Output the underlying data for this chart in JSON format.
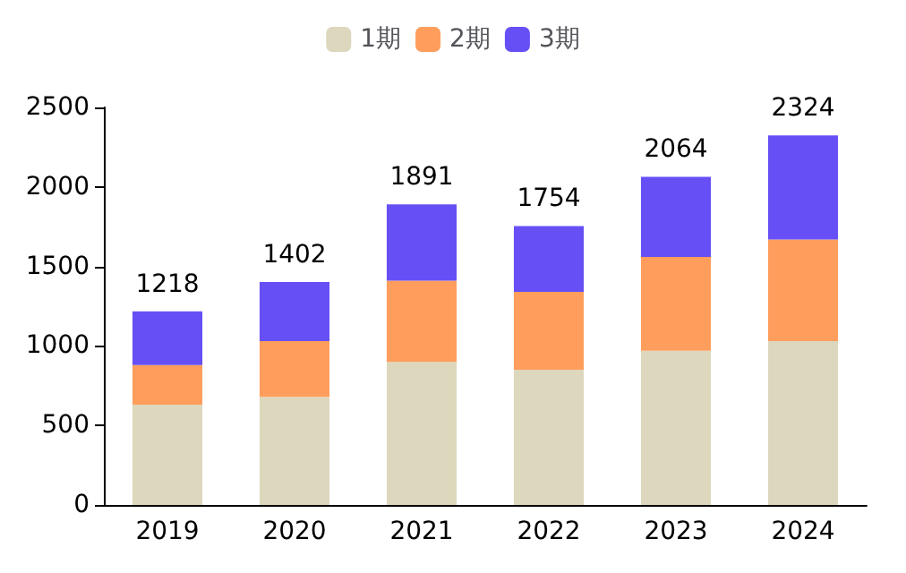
{
  "chart_data": {
    "type": "bar",
    "stacked": true,
    "categories": [
      "2019",
      "2020",
      "2021",
      "2022",
      "2023",
      "2024"
    ],
    "series": [
      {
        "name": "1期",
        "color": "#ddd7bd",
        "values": [
          630,
          680,
          900,
          850,
          970,
          1030
        ]
      },
      {
        "name": "2期",
        "color": "#ff9e5c",
        "values": [
          250,
          350,
          510,
          490,
          590,
          640
        ]
      },
      {
        "name": "3期",
        "color": "#6650f5",
        "values": [
          338,
          372,
          481,
          414,
          504,
          654
        ]
      }
    ],
    "totals": [
      "1218",
      "1402",
      "1891",
      "1754",
      "2064",
      "2324"
    ],
    "ylim": [
      0,
      2500
    ],
    "yticks": [
      0,
      500,
      1000,
      1500,
      2000,
      2500
    ],
    "grid": false,
    "legend": "top"
  }
}
